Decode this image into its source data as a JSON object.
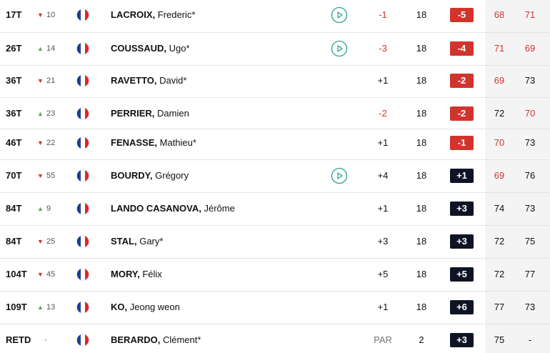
{
  "colors": {
    "red": "#d0342c",
    "dark": "#0e1424",
    "up": "#4caf50",
    "down": "#d0342c",
    "muted": "#777777",
    "text": "#111111",
    "video": "#2a9d8f"
  },
  "rows": [
    {
      "pos": "17T",
      "dir": "down",
      "move": "10",
      "last": "LACROIX,",
      "first": "Frederic*",
      "video": true,
      "today": "-1",
      "thru": 18,
      "total": "-5",
      "r1": {
        "score": 68,
        "under": true
      },
      "r2": {
        "score": 71,
        "under": true
      }
    },
    {
      "pos": "26T",
      "dir": "up",
      "move": "14",
      "last": "COUSSAUD,",
      "first": "Ugo*",
      "video": true,
      "today": "-3",
      "thru": 18,
      "total": "-4",
      "r1": {
        "score": 71,
        "under": true
      },
      "r2": {
        "score": 69,
        "under": true
      }
    },
    {
      "pos": "36T",
      "dir": "down",
      "move": "21",
      "last": "RAVETTO,",
      "first": "David*",
      "video": false,
      "today": "+1",
      "thru": 18,
      "total": "-2",
      "r1": {
        "score": 69,
        "under": true
      },
      "r2": {
        "score": 73,
        "under": false
      }
    },
    {
      "pos": "36T",
      "dir": "up",
      "move": "23",
      "last": "PERRIER,",
      "first": "Damien",
      "video": false,
      "today": "-2",
      "thru": 18,
      "total": "-2",
      "r1": {
        "score": 72,
        "under": false
      },
      "r2": {
        "score": 70,
        "under": true
      }
    },
    {
      "pos": "46T",
      "dir": "down",
      "move": "22",
      "last": "FENASSE,",
      "first": "Mathieu*",
      "video": false,
      "today": "+1",
      "thru": 18,
      "total": "-1",
      "r1": {
        "score": 70,
        "under": true
      },
      "r2": {
        "score": 73,
        "under": false
      }
    },
    {
      "pos": "70T",
      "dir": "down",
      "move": "55",
      "last": "BOURDY,",
      "first": "Grégory",
      "video": true,
      "today": "+4",
      "thru": 18,
      "total": "+1",
      "r1": {
        "score": 69,
        "under": true
      },
      "r2": {
        "score": 76,
        "under": false
      }
    },
    {
      "pos": "84T",
      "dir": "up",
      "move": "9",
      "last": "LANDO CASANOVA,",
      "first": "Jérôme",
      "video": false,
      "today": "+1",
      "thru": 18,
      "total": "+3",
      "r1": {
        "score": 74,
        "under": false
      },
      "r2": {
        "score": 73,
        "under": false
      }
    },
    {
      "pos": "84T",
      "dir": "down",
      "move": "25",
      "last": "STAL,",
      "first": "Gary*",
      "video": false,
      "today": "+3",
      "thru": 18,
      "total": "+3",
      "r1": {
        "score": 72,
        "under": false
      },
      "r2": {
        "score": 75,
        "under": false
      }
    },
    {
      "pos": "104T",
      "dir": "down",
      "move": "45",
      "last": "MORY,",
      "first": "Félix",
      "video": false,
      "today": "+5",
      "thru": 18,
      "total": "+5",
      "r1": {
        "score": 72,
        "under": false
      },
      "r2": {
        "score": 77,
        "under": false
      }
    },
    {
      "pos": "109T",
      "dir": "up",
      "move": "13",
      "last": "KO,",
      "first": "Jeong weon",
      "video": false,
      "today": "+1",
      "thru": 18,
      "total": "+6",
      "r1": {
        "score": 77,
        "under": false
      },
      "r2": {
        "score": 73,
        "under": false
      }
    },
    {
      "pos": "RETD",
      "dir": "none",
      "move": "-",
      "last": "BERARDO,",
      "first": "Clément*",
      "video": false,
      "today": "PAR",
      "thru": 2,
      "total": "+3",
      "r1": {
        "score": 75,
        "under": false
      },
      "r2": {
        "score": "-",
        "under": false
      }
    }
  ]
}
